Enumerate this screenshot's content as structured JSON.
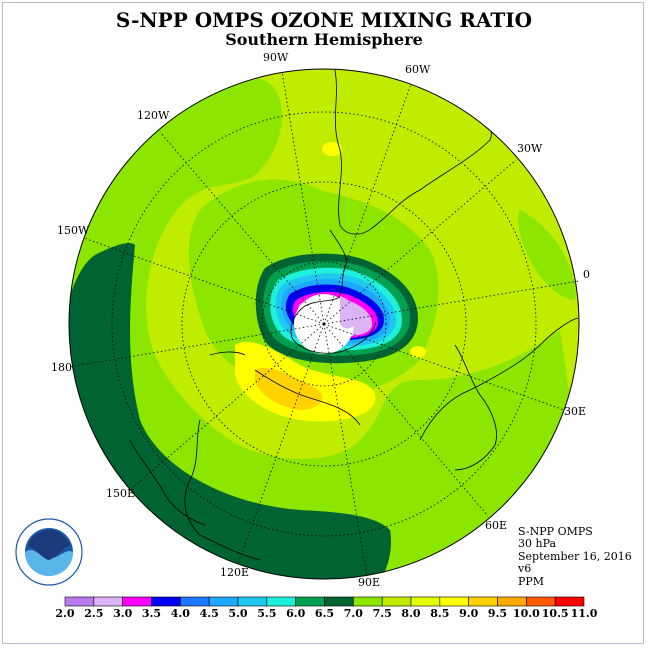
{
  "title": "S-NPP OMPS OZONE MIXING RATIO",
  "subtitle": "Southern Hemisphere",
  "longitude_labels": [
    "90W",
    "60W",
    "30W",
    "0",
    "30E",
    "60E",
    "90E",
    "120E",
    "150E",
    "180",
    "150W",
    "120W"
  ],
  "info": {
    "instrument": "S-NPP OMPS",
    "level": "30 hPa",
    "date": "September 16, 2016",
    "version": "v6",
    "units": "PPM"
  },
  "logo": {
    "text": "NOAA",
    "ring": "NATIONAL OCEANIC AND ATMOSPHERIC ADMINISTRATION · U.S. DEPARTMENT OF COMMERCE"
  },
  "colorbar": {
    "ticks": [
      "2.0",
      "2.5",
      "3.0",
      "3.5",
      "4.0",
      "4.5",
      "5.0",
      "5.5",
      "6.0",
      "6.5",
      "7.0",
      "7.5",
      "8.0",
      "8.5",
      "9.0",
      "9.5",
      "10.0",
      "10.5",
      "11.0"
    ],
    "colors": [
      "#b97af0",
      "#dcb4f5",
      "#ff00ff",
      "#0000ee",
      "#1e78ff",
      "#1ea8ff",
      "#1ec8f0",
      "#1ef0dc",
      "#00a050",
      "#006432",
      "#8ce600",
      "#c0ec00",
      "#e6ff00",
      "#ffff00",
      "#ffd200",
      "#ffaa00",
      "#ff5a00",
      "#ff0000",
      "#8c5a3c"
    ]
  },
  "legend_colors": {
    "land_outline": "#000000",
    "graticule": "#000000",
    "polar_no_data": "#ffffff"
  }
}
